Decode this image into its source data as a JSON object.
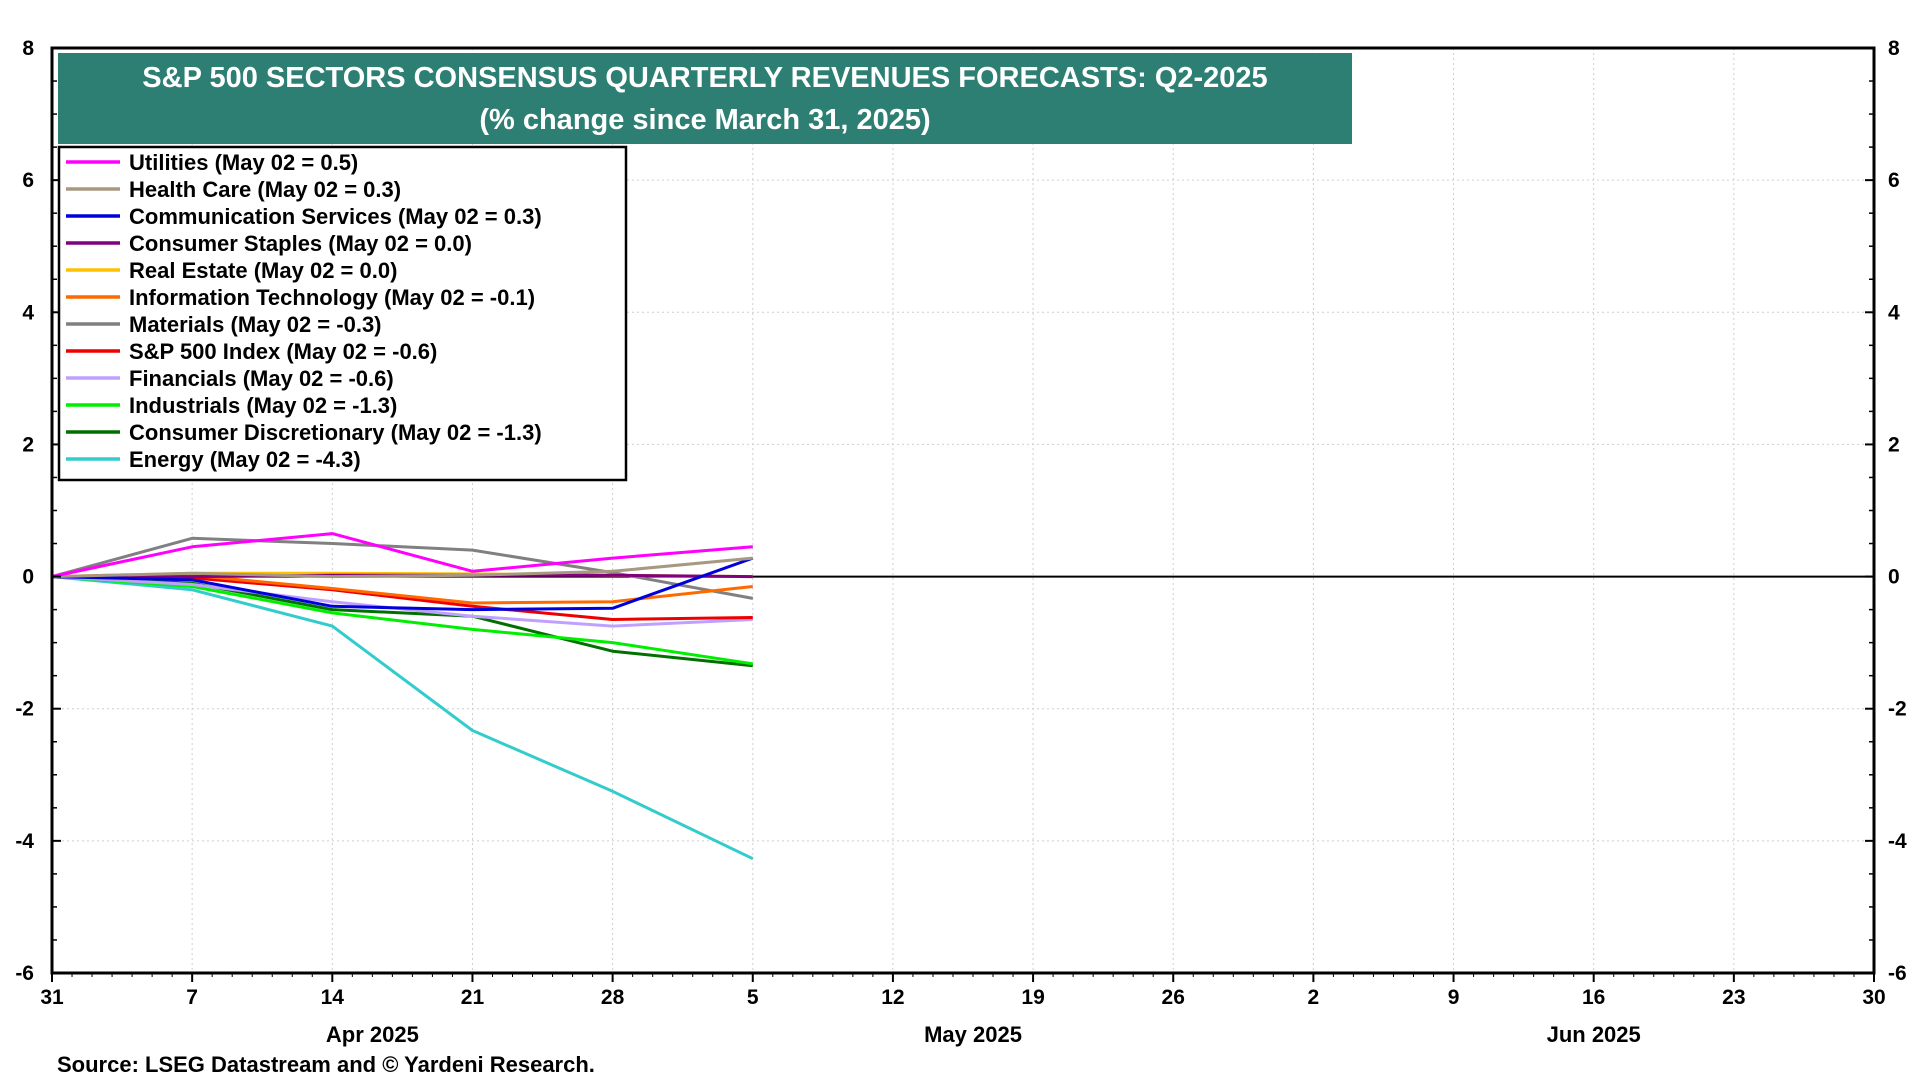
{
  "chart_data": {
    "type": "line",
    "title": "S&P 500 SECTORS CONSENSUS QUARTERLY REVENUES FORECASTS: Q2-2025",
    "subtitle": "(% change since March 31, 2025)",
    "source": "Source: LSEG Datastream and © Yardeni Research.",
    "title_bg_color": "#2e7f73",
    "ylim": [
      -6,
      8
    ],
    "y_ticks": [
      "8",
      "6",
      "4",
      "2",
      "0",
      "-2",
      "-4",
      "-6"
    ],
    "x_range": [
      "2025-03-31",
      "2025-06-30"
    ],
    "x_ticks": [
      "31",
      "7",
      "14",
      "21",
      "28",
      "5",
      "12",
      "19",
      "26",
      "2",
      "9",
      "16",
      "23",
      "30"
    ],
    "months": [
      "Apr 2025",
      "May 2025",
      "Jun 2025"
    ],
    "grid": true,
    "legend_position": "top-left",
    "x": [
      "2025-03-31",
      "2025-04-07",
      "2025-04-14",
      "2025-04-21",
      "2025-04-28",
      "2025-05-05"
    ],
    "series": [
      {
        "name": "Utilities (May 02 = 0.5)",
        "color": "#ff00ff",
        "values": [
          0,
          0.45,
          0.65,
          0.08,
          0.28,
          0.45
        ]
      },
      {
        "name": "Health Care (May 02 = 0.3)",
        "color": "#a89880",
        "values": [
          0,
          0.05,
          0.0,
          0.02,
          0.08,
          0.28
        ]
      },
      {
        "name": "Communication Services (May 02 = 0.3)",
        "color": "#0000dd",
        "values": [
          0,
          -0.05,
          -0.45,
          -0.5,
          -0.48,
          0.28
        ]
      },
      {
        "name": "Consumer Staples (May 02 = 0.0)",
        "color": "#800080",
        "values": [
          0,
          0.0,
          0.02,
          0.02,
          0.02,
          0.0
        ]
      },
      {
        "name": "Real Estate (May 02 = 0.0)",
        "color": "#ffc000",
        "values": [
          0,
          0.05,
          0.05,
          0.04,
          0.02,
          0.0
        ]
      },
      {
        "name": "Information Technology (May 02 = -0.1)",
        "color": "#ff6a00",
        "values": [
          0,
          0.02,
          -0.18,
          -0.4,
          -0.38,
          -0.15
        ]
      },
      {
        "name": "Materials (May 02 = -0.3)",
        "color": "#808080",
        "values": [
          0,
          0.58,
          0.5,
          0.4,
          0.06,
          -0.33
        ]
      },
      {
        "name": "S&P 500 Index (May 02 = -0.6)",
        "color": "#ee0000",
        "values": [
          0,
          -0.02,
          -0.2,
          -0.45,
          -0.65,
          -0.62
        ]
      },
      {
        "name": "Financials (May 02 = -0.6)",
        "color": "#c0a0ff",
        "values": [
          0,
          -0.12,
          -0.38,
          -0.6,
          -0.75,
          -0.65
        ]
      },
      {
        "name": "Industrials (May 02 = -1.3)",
        "color": "#00ee00",
        "values": [
          0,
          -0.15,
          -0.55,
          -0.8,
          -1.0,
          -1.32
        ]
      },
      {
        "name": "Consumer Discretionary (May 02 = -1.3)",
        "color": "#007000",
        "values": [
          0,
          -0.1,
          -0.5,
          -0.6,
          -1.13,
          -1.35
        ]
      },
      {
        "name": "Energy (May 02 = -4.3)",
        "color": "#33cccc",
        "values": [
          0,
          -0.2,
          -0.75,
          -2.33,
          -3.25,
          -4.27
        ]
      }
    ]
  }
}
